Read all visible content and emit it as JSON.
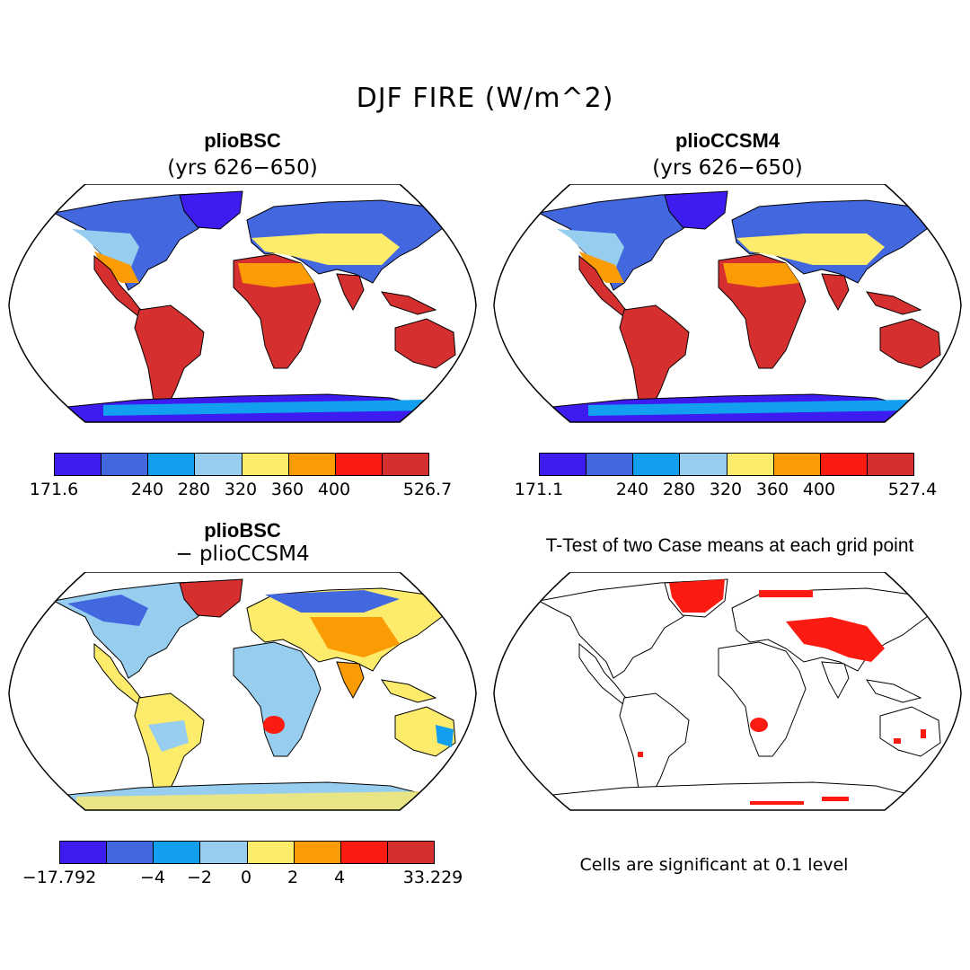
{
  "title": "DJF FIRE (W/m^2)",
  "panels": [
    {
      "id": "a",
      "title": "plioBSC",
      "subtitle": "(yrs 626−650)",
      "colorbar": {
        "colors": [
          "#3d1cf0",
          "#4267de",
          "#129fef",
          "#97cdee",
          "#fdeb6b",
          "#fb9c04",
          "#fb1b10",
          "#d52f2f"
        ],
        "labels": [
          "171.6",
          "240",
          "280",
          "320",
          "360",
          "400",
          "526.7"
        ]
      }
    },
    {
      "id": "b",
      "title": "plioCCSM4",
      "subtitle": "(yrs 626−650)",
      "colorbar": {
        "colors": [
          "#3d1cf0",
          "#4267de",
          "#129fef",
          "#97cdee",
          "#fdeb6b",
          "#fb9c04",
          "#fb1b10",
          "#d52f2f"
        ],
        "labels": [
          "171.1",
          "240",
          "280",
          "320",
          "360",
          "400",
          "527.4"
        ]
      }
    },
    {
      "id": "c",
      "title": "plioBSC",
      "subtitle": "− plioCCSM4",
      "colorbar": {
        "colors": [
          "#3d1cf0",
          "#4267de",
          "#129fef",
          "#97cdee",
          "#fdeb6b",
          "#fb9c04",
          "#fb1b10",
          "#d52f2f"
        ],
        "labels": [
          "−17.792",
          "−4",
          "−2",
          "0",
          "2",
          "4",
          "33.229"
        ]
      }
    },
    {
      "id": "d",
      "title": "T-Test of two Case means at each grid point",
      "note": "Cells are significant at 0.1 level"
    }
  ]
}
